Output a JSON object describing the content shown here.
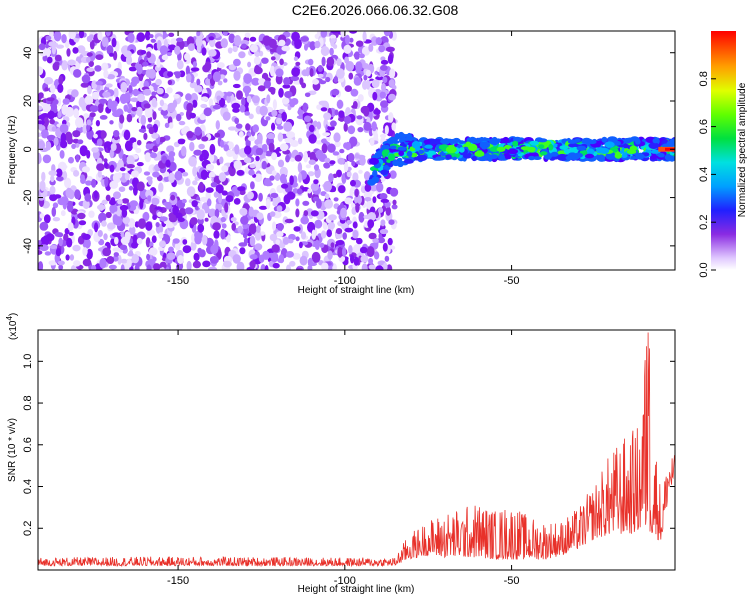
{
  "title": "C2E6.2026.066.06.32.G08",
  "chart_data": [
    {
      "type": "heatmap",
      "title": "C2E6.2026.066.06.32.G08",
      "xlabel": "Height of straight line (km)",
      "ylabel": "Frequency (Hz)",
      "xlim": [
        -192,
        -1
      ],
      "ylim": [
        -50,
        49
      ],
      "xticks": [
        -150,
        -100,
        -50
      ],
      "xtick_labels": [
        "-150",
        "-100",
        "-50"
      ],
      "yticks": [
        -40,
        -20,
        0,
        20,
        40
      ],
      "ytick_labels": [
        "-40",
        "-20",
        "0",
        "20",
        "40"
      ],
      "description_noise_region": {
        "x_range": [
          -192,
          -85
        ],
        "y_range": [
          -50,
          49
        ]
      },
      "signal_band": {
        "x_range": [
          -92,
          -1
        ],
        "center_freq_start": -8,
        "center_freq_end": 0,
        "half_width": 4
      },
      "colorbar": {
        "label": "Normalized spectral amplitude",
        "range": [
          0,
          1
        ],
        "ticks": [
          0.0,
          0.2,
          0.4,
          0.6,
          0.8
        ],
        "tick_labels": [
          "0.0",
          "0.2",
          "0.4",
          "0.6",
          "0.8"
        ]
      }
    },
    {
      "type": "line",
      "xlabel": "Height of straight line (km)",
      "ylabel": "SNR (10 * v/v)",
      "y_multiplier_label": "(x10",
      "y_multiplier_exp": "4",
      "y_multiplier_close": ")",
      "xlim": [
        -192,
        -1
      ],
      "ylim": [
        0,
        11500
      ],
      "xticks": [
        -150,
        -100,
        -50
      ],
      "xtick_labels": [
        "-150",
        "-100",
        "-50"
      ],
      "yticks": [
        2000,
        4000,
        6000,
        8000,
        10000
      ],
      "ytick_labels": [
        "0.2",
        "0.4",
        "0.6",
        "0.8",
        "1.0"
      ],
      "series": [
        {
          "name": "SNR",
          "color": "#e8312a",
          "envelope": [
            [
              -192,
              200,
              600
            ],
            [
              -150,
              200,
              650
            ],
            [
              -100,
              200,
              600
            ],
            [
              -85,
              200,
              600
            ],
            [
              -81,
              500,
              1700
            ],
            [
              -75,
              700,
              2400
            ],
            [
              -70,
              600,
              2800
            ],
            [
              -65,
              600,
              3000
            ],
            [
              -60,
              600,
              3300
            ],
            [
              -55,
              500,
              2900
            ],
            [
              -50,
              500,
              3200
            ],
            [
              -45,
              500,
              2600
            ],
            [
              -40,
              500,
              2400
            ],
            [
              -35,
              700,
              2400
            ],
            [
              -30,
              1000,
              3000
            ],
            [
              -25,
              1500,
              4200
            ],
            [
              -20,
              1700,
              5800
            ],
            [
              -15,
              1700,
              6600
            ],
            [
              -12,
              1800,
              7000
            ],
            [
              -9,
              1800,
              11500
            ],
            [
              -7,
              1500,
              6600
            ],
            [
              -5,
              1400,
              3500
            ],
            [
              -3,
              3500,
              5800
            ],
            [
              -1,
              4300,
              5500
            ]
          ]
        }
      ]
    }
  ]
}
